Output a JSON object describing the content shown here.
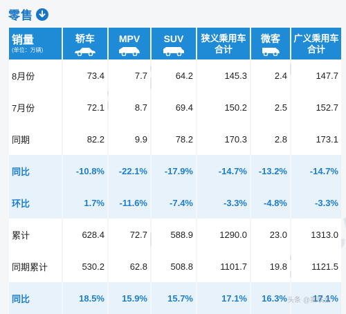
{
  "title": "零售",
  "header": {
    "row_label": "销量",
    "unit_note": "(单位：万辆)",
    "columns": [
      {
        "label": "轿车",
        "icon": "sedan-icon"
      },
      {
        "label": "MPV",
        "icon": "mpv-icon"
      },
      {
        "label": "SUV",
        "icon": "suv-icon"
      },
      {
        "label": "狭义乘用车合计",
        "line1": "狭义乘用车",
        "line2": "合计"
      },
      {
        "label": "微客",
        "icon": "minivan-icon"
      },
      {
        "label": "广义乘用车合计",
        "line1": "广义乘用车",
        "line2": "合计"
      }
    ]
  },
  "rows": [
    {
      "label": "8月份",
      "values": [
        "73.4",
        "7.7",
        "64.2",
        "145.3",
        "2.4",
        "147.7"
      ],
      "style": "normal"
    },
    {
      "label": "7月份",
      "values": [
        "72.1",
        "8.7",
        "69.4",
        "150.2",
        "2.5",
        "152.7"
      ],
      "style": "normal"
    },
    {
      "label": "同期",
      "values": [
        "82.2",
        "9.9",
        "78.2",
        "170.3",
        "2.8",
        "173.1"
      ],
      "style": "normal"
    },
    {
      "label": "同比",
      "values": [
        "-10.8%",
        "-22.1%",
        "-17.9%",
        "-14.7%",
        "-13.2%",
        "-14.7%"
      ],
      "style": "pct"
    },
    {
      "label": "环比",
      "values": [
        "1.7%",
        "-11.6%",
        "-7.4%",
        "-3.3%",
        "-4.8%",
        "-3.3%"
      ],
      "style": "pct"
    },
    {
      "label": "累计",
      "values": [
        "628.4",
        "72.7",
        "588.9",
        "1290.0",
        "23.0",
        "1313.0"
      ],
      "style": "normal"
    },
    {
      "label": "同期累计",
      "values": [
        "530.2",
        "62.8",
        "508.8",
        "1101.7",
        "19.8",
        "1121.5"
      ],
      "style": "normal"
    },
    {
      "label": "同比",
      "values": [
        "18.5%",
        "15.9%",
        "15.7%",
        "17.1%",
        "16.3%",
        "17.1%"
      ],
      "style": "pct"
    }
  ],
  "watermark_text": "CPCA",
  "credit": "头条 @乘联会",
  "colors": {
    "header_bg": "#1f8ad6",
    "accent": "#1876c7",
    "pct_text": "#1c7ed0",
    "pct_row_bg": "#e8f2fb"
  }
}
